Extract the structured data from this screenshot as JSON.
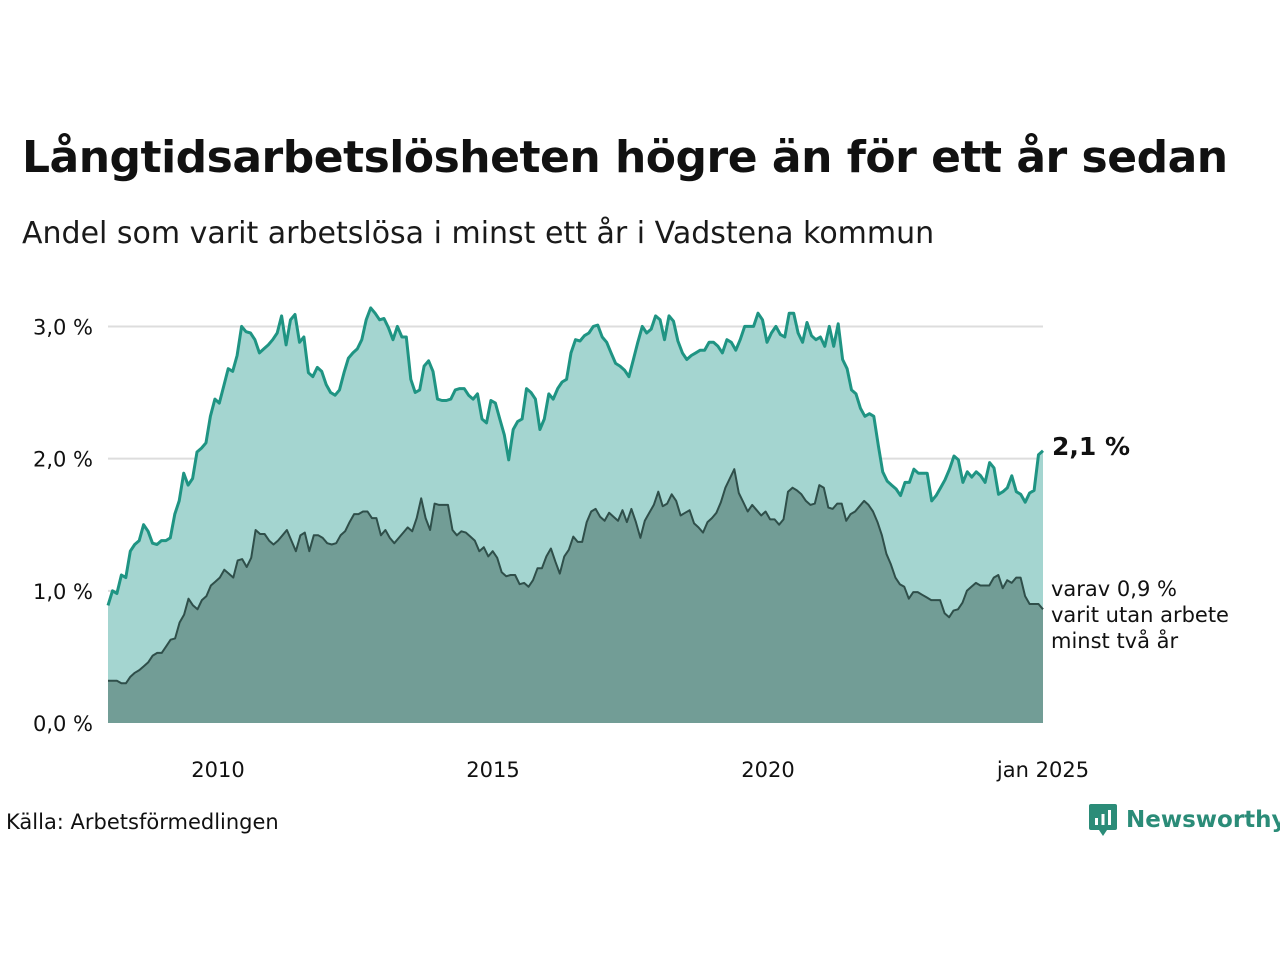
{
  "header": {
    "title": "Långtidsarbetslösheten högre än för ett år sedan",
    "subtitle": "Andel som varit arbetslösa i minst ett år i Vadstena kommun"
  },
  "footer": {
    "source": "Källa: Arbetsförmedlingen",
    "brand": "Newsworthy"
  },
  "colors": {
    "total_line": "#1f9483",
    "total_fill": "#a4d5d0",
    "long_line": "#2f4f4a",
    "long_fill": "#729d96",
    "grid": "#dddddd",
    "brand": "#2b8c78"
  },
  "chart_data": {
    "type": "area",
    "x_start": 2008.0,
    "x_end": 2025.0,
    "x_step_years": 0.08333,
    "ylim": [
      0,
      3.2
    ],
    "yticks": [
      0,
      1,
      2,
      3
    ],
    "ytick_labels": [
      "0,0 %",
      "1,0 %",
      "2,0 %",
      "3,0 %"
    ],
    "xticks": [
      2010,
      2015,
      2020,
      2025
    ],
    "xtick_labels": [
      "2010",
      "2015",
      "2020",
      "jan 2025"
    ],
    "grid": true,
    "series": [
      {
        "name": "Arbetslösa minst ett år",
        "end_label": "2,1 %",
        "values": [
          0.89,
          1.0,
          0.98,
          1.12,
          1.1,
          1.3,
          1.35,
          1.38,
          1.5,
          1.45,
          1.36,
          1.35,
          1.38,
          1.38,
          1.4,
          1.58,
          1.68,
          1.89,
          1.8,
          1.85,
          2.05,
          2.08,
          2.12,
          2.32,
          2.45,
          2.42,
          2.55,
          2.68,
          2.66,
          2.78,
          3.0,
          2.96,
          2.95,
          2.9,
          2.8,
          2.83,
          2.86,
          2.9,
          2.95,
          3.08,
          2.86,
          3.05,
          3.09,
          2.88,
          2.92,
          2.65,
          2.62,
          2.69,
          2.66,
          2.56,
          2.5,
          2.48,
          2.52,
          2.65,
          2.76,
          2.8,
          2.83,
          2.9,
          3.05,
          3.14,
          3.1,
          3.05,
          3.06,
          2.99,
          2.9,
          3.0,
          2.92,
          2.92,
          2.6,
          2.5,
          2.52,
          2.7,
          2.74,
          2.66,
          2.45,
          2.44,
          2.44,
          2.45,
          2.52,
          2.53,
          2.53,
          2.48,
          2.45,
          2.49,
          2.3,
          2.27,
          2.44,
          2.42,
          2.3,
          2.18,
          1.99,
          2.22,
          2.28,
          2.3,
          2.53,
          2.5,
          2.45,
          2.22,
          2.3,
          2.49,
          2.45,
          2.53,
          2.58,
          2.6,
          2.8,
          2.9,
          2.89,
          2.93,
          2.95,
          3.0,
          3.01,
          2.92,
          2.88,
          2.8,
          2.72,
          2.7,
          2.67,
          2.62,
          2.75,
          2.88,
          3.0,
          2.95,
          2.98,
          3.08,
          3.05,
          2.9,
          3.08,
          3.04,
          2.89,
          2.8,
          2.75,
          2.78,
          2.8,
          2.82,
          2.82,
          2.88,
          2.88,
          2.85,
          2.8,
          2.9,
          2.88,
          2.82,
          2.9,
          3.0,
          3.0,
          3.0,
          3.1,
          3.05,
          2.88,
          2.95,
          3.0,
          2.94,
          2.92,
          3.1,
          3.1,
          2.95,
          2.88,
          3.03,
          2.93,
          2.9,
          2.92,
          2.85,
          3.0,
          2.85,
          3.02,
          2.75,
          2.68,
          2.52,
          2.49,
          2.38,
          2.32,
          2.34,
          2.32,
          2.1,
          1.9,
          1.83,
          1.8,
          1.77,
          1.72,
          1.82,
          1.82,
          1.92,
          1.89,
          1.89,
          1.89,
          1.68,
          1.72,
          1.78,
          1.84,
          1.92,
          2.02,
          1.99,
          1.82,
          1.9,
          1.86,
          1.9,
          1.87,
          1.82,
          1.97,
          1.93,
          1.73,
          1.75,
          1.78,
          1.87,
          1.75,
          1.73,
          1.67,
          1.74,
          1.76,
          2.03,
          2.06
        ]
      },
      {
        "name": "varav utan arbete minst två år",
        "end_label": [
          "varav 0,9 %",
          "varit utan arbete",
          "minst två år"
        ],
        "values": [
          0.32,
          0.32,
          0.32,
          0.3,
          0.3,
          0.35,
          0.38,
          0.4,
          0.43,
          0.46,
          0.51,
          0.53,
          0.53,
          0.58,
          0.63,
          0.64,
          0.76,
          0.82,
          0.94,
          0.89,
          0.86,
          0.93,
          0.96,
          1.04,
          1.07,
          1.1,
          1.16,
          1.13,
          1.1,
          1.23,
          1.24,
          1.18,
          1.25,
          1.46,
          1.43,
          1.43,
          1.38,
          1.35,
          1.38,
          1.42,
          1.46,
          1.38,
          1.3,
          1.42,
          1.44,
          1.3,
          1.42,
          1.42,
          1.4,
          1.36,
          1.35,
          1.36,
          1.42,
          1.45,
          1.52,
          1.58,
          1.58,
          1.6,
          1.6,
          1.55,
          1.55,
          1.42,
          1.46,
          1.4,
          1.36,
          1.4,
          1.44,
          1.48,
          1.45,
          1.55,
          1.7,
          1.55,
          1.46,
          1.66,
          1.65,
          1.65,
          1.65,
          1.46,
          1.42,
          1.45,
          1.44,
          1.41,
          1.38,
          1.3,
          1.33,
          1.26,
          1.3,
          1.25,
          1.14,
          1.11,
          1.12,
          1.12,
          1.05,
          1.06,
          1.03,
          1.08,
          1.17,
          1.17,
          1.26,
          1.32,
          1.22,
          1.13,
          1.26,
          1.31,
          1.41,
          1.37,
          1.37,
          1.52,
          1.6,
          1.62,
          1.56,
          1.53,
          1.59,
          1.56,
          1.53,
          1.61,
          1.52,
          1.62,
          1.52,
          1.4,
          1.53,
          1.59,
          1.65,
          1.75,
          1.64,
          1.66,
          1.73,
          1.68,
          1.57,
          1.59,
          1.61,
          1.51,
          1.48,
          1.44,
          1.52,
          1.55,
          1.59,
          1.67,
          1.78,
          1.85,
          1.92,
          1.74,
          1.67,
          1.6,
          1.65,
          1.61,
          1.57,
          1.6,
          1.54,
          1.54,
          1.5,
          1.54,
          1.75,
          1.78,
          1.76,
          1.73,
          1.68,
          1.65,
          1.66,
          1.8,
          1.78,
          1.63,
          1.62,
          1.66,
          1.66,
          1.53,
          1.58,
          1.6,
          1.64,
          1.68,
          1.65,
          1.6,
          1.52,
          1.42,
          1.28,
          1.2,
          1.1,
          1.05,
          1.03,
          0.94,
          0.99,
          0.99,
          0.97,
          0.95,
          0.93,
          0.93,
          0.93,
          0.83,
          0.8,
          0.85,
          0.86,
          0.91,
          1.0,
          1.03,
          1.06,
          1.04,
          1.04,
          1.04,
          1.1,
          1.12,
          1.02,
          1.08,
          1.06,
          1.1,
          1.1,
          0.96,
          0.9,
          0.9,
          0.9,
          0.86
        ]
      }
    ]
  }
}
